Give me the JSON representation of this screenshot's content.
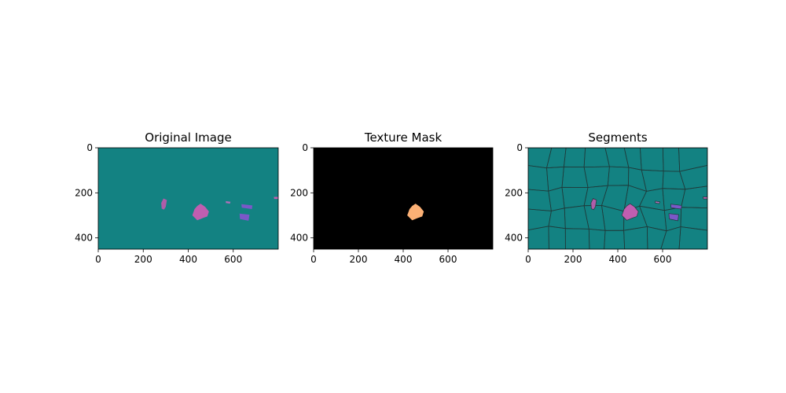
{
  "chart_data": [
    {
      "type": "image",
      "title": "Original Image",
      "xlim": [
        0,
        800
      ],
      "ylim": [
        450,
        0
      ],
      "xticks": [
        0,
        200,
        400,
        600
      ],
      "yticks": [
        0,
        200,
        400
      ],
      "background_color": "#138282",
      "blobs": [
        {
          "name": "small-pink-blob",
          "color": "#b05da9",
          "points": [
            [
              290,
              225
            ],
            [
              305,
              232
            ],
            [
              300,
              262
            ],
            [
              292,
              275
            ],
            [
              282,
              270
            ],
            [
              280,
              245
            ]
          ]
        },
        {
          "name": "main-pink-blob",
          "color": "#c05eb0",
          "points": [
            [
              455,
              248
            ],
            [
              475,
              262
            ],
            [
              492,
              283
            ],
            [
              485,
              305
            ],
            [
              465,
              312
            ],
            [
              440,
              322
            ],
            [
              418,
              300
            ],
            [
              428,
              272
            ],
            [
              440,
              258
            ]
          ]
        },
        {
          "name": "blue-top-blob",
          "color": "#7b58c8",
          "points": [
            [
              636,
              250
            ],
            [
              685,
              256
            ],
            [
              683,
              272
            ],
            [
              638,
              266
            ]
          ]
        },
        {
          "name": "blue-bottom-blob",
          "color": "#7b58c8",
          "points": [
            [
              628,
              292
            ],
            [
              672,
              297
            ],
            [
              668,
              324
            ],
            [
              630,
              316
            ]
          ]
        },
        {
          "name": "lilac-small-blob",
          "color": "#b070b8",
          "points": [
            [
              567,
              237
            ],
            [
              588,
              240
            ],
            [
              585,
              248
            ],
            [
              567,
              245
            ]
          ]
        },
        {
          "name": "lilac-right-blob",
          "color": "#c060b0",
          "points": [
            [
              780,
              218
            ],
            [
              800,
              218
            ],
            [
              800,
              227
            ],
            [
              782,
              227
            ]
          ]
        }
      ]
    },
    {
      "type": "image",
      "title": "Texture Mask",
      "xlim": [
        0,
        800
      ],
      "ylim": [
        450,
        0
      ],
      "xticks": [
        0,
        200,
        400,
        600
      ],
      "yticks": [
        0,
        200,
        400
      ],
      "background_color": "#000000",
      "blobs": [
        {
          "name": "mask-blob",
          "color": "#fbb075",
          "points": [
            [
              455,
              248
            ],
            [
              475,
              262
            ],
            [
              492,
              283
            ],
            [
              485,
              305
            ],
            [
              465,
              312
            ],
            [
              440,
              322
            ],
            [
              418,
              300
            ],
            [
              428,
              272
            ],
            [
              440,
              258
            ]
          ]
        }
      ]
    },
    {
      "type": "image",
      "title": "Segments",
      "xlim": [
        0,
        800
      ],
      "ylim": [
        450,
        0
      ],
      "xticks": [
        0,
        200,
        400,
        600
      ],
      "yticks": [
        0,
        200,
        400
      ],
      "background_color": "#138282",
      "boundary_color": "#1f3b3b",
      "grid_cols": [
        0,
        85,
        170,
        255,
        345,
        430,
        515,
        600,
        690,
        800
      ],
      "grid_rows": [
        0,
        90,
        180,
        270,
        360,
        450
      ],
      "blobs": [
        {
          "name": "small-pink-blob",
          "color": "#b05da9",
          "points": [
            [
              290,
              225
            ],
            [
              305,
              232
            ],
            [
              300,
              262
            ],
            [
              292,
              275
            ],
            [
              282,
              270
            ],
            [
              280,
              245
            ]
          ]
        },
        {
          "name": "main-pink-blob",
          "color": "#c05eb0",
          "points": [
            [
              455,
              248
            ],
            [
              475,
              262
            ],
            [
              492,
              283
            ],
            [
              485,
              305
            ],
            [
              465,
              312
            ],
            [
              440,
              322
            ],
            [
              418,
              300
            ],
            [
              428,
              272
            ],
            [
              440,
              258
            ]
          ]
        },
        {
          "name": "blue-top-blob",
          "color": "#7b58c8",
          "points": [
            [
              636,
              250
            ],
            [
              685,
              256
            ],
            [
              683,
              272
            ],
            [
              638,
              266
            ]
          ]
        },
        {
          "name": "blue-bottom-blob",
          "color": "#7b58c8",
          "points": [
            [
              628,
              292
            ],
            [
              672,
              297
            ],
            [
              668,
              324
            ],
            [
              630,
              316
            ]
          ]
        },
        {
          "name": "lilac-small-blob",
          "color": "#b070b8",
          "points": [
            [
              567,
              237
            ],
            [
              588,
              240
            ],
            [
              585,
              248
            ],
            [
              567,
              245
            ]
          ]
        },
        {
          "name": "lilac-right-blob",
          "color": "#c060b0",
          "points": [
            [
              780,
              218
            ],
            [
              800,
              218
            ],
            [
              800,
              227
            ],
            [
              782,
              227
            ]
          ]
        }
      ]
    }
  ]
}
